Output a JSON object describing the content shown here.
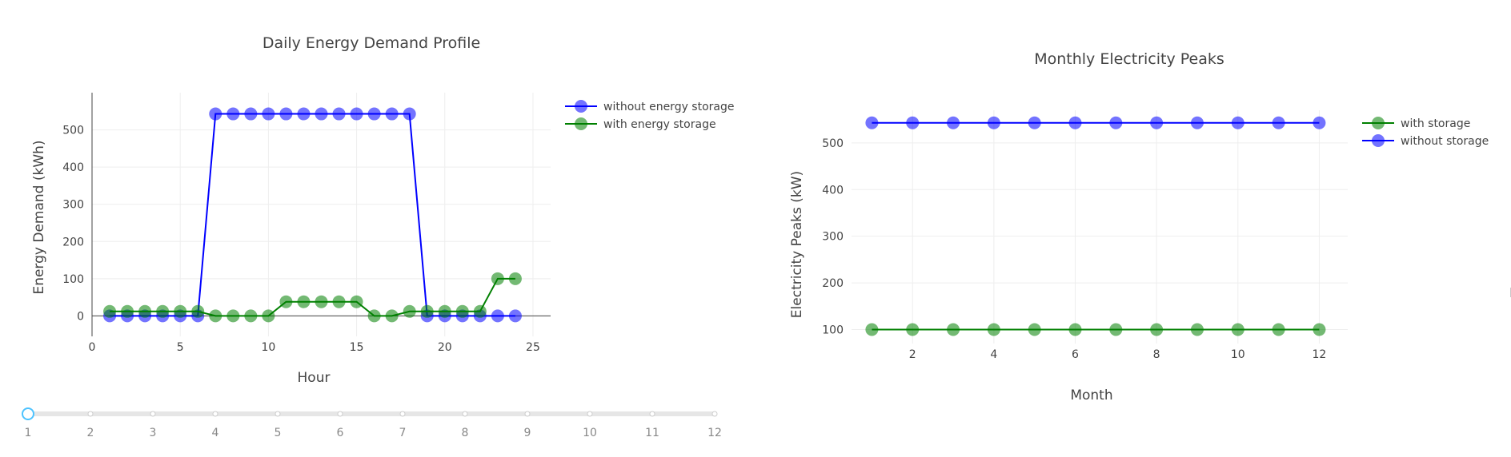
{
  "chart_data": [
    {
      "type": "line",
      "title": "Daily Energy Demand Profile",
      "xlabel": "Hour",
      "ylabel": "Energy Demand (kWh)",
      "xlim": [
        0,
        26
      ],
      "ylim": [
        -55,
        600
      ],
      "x_ticks": [
        0,
        5,
        10,
        15,
        20,
        25
      ],
      "y_ticks": [
        0,
        100,
        200,
        300,
        400,
        500
      ],
      "grid": true,
      "legend_position": "top-right",
      "series": [
        {
          "name": "without energy storage",
          "color": "#0000ff",
          "x": [
            1,
            2,
            3,
            4,
            5,
            6,
            7,
            8,
            9,
            10,
            11,
            12,
            13,
            14,
            15,
            16,
            17,
            18,
            19,
            20,
            21,
            22,
            23,
            24
          ],
          "values": [
            0,
            0,
            0,
            0,
            0,
            0,
            543,
            543,
            543,
            543,
            543,
            543,
            543,
            543,
            543,
            543,
            543,
            543,
            0,
            0,
            0,
            0,
            0,
            0
          ]
        },
        {
          "name": "with energy storage",
          "color": "#008000",
          "x": [
            1,
            2,
            3,
            4,
            5,
            6,
            7,
            8,
            9,
            10,
            11,
            12,
            13,
            14,
            15,
            16,
            17,
            18,
            19,
            20,
            21,
            22,
            23,
            24
          ],
          "values": [
            12,
            12,
            12,
            12,
            12,
            12,
            0,
            0,
            0,
            0,
            38,
            38,
            38,
            38,
            38,
            0,
            0,
            12,
            12,
            12,
            12,
            12,
            100,
            100
          ]
        }
      ]
    },
    {
      "type": "line",
      "title": "Monthly Electricity Peaks",
      "xlabel": "Month",
      "ylabel": "Electricity Peaks (kW)",
      "xlim": [
        0.5,
        12.7
      ],
      "ylim": [
        70,
        570
      ],
      "x_ticks": [
        2,
        4,
        6,
        8,
        10,
        12
      ],
      "y_ticks": [
        100,
        200,
        300,
        400,
        500
      ],
      "grid": true,
      "legend_position": "top-right",
      "series": [
        {
          "name": "with storage",
          "color": "#008000",
          "x": [
            1,
            2,
            3,
            4,
            5,
            6,
            7,
            8,
            9,
            10,
            11,
            12
          ],
          "values": [
            100,
            100,
            100,
            100,
            100,
            100,
            100,
            100,
            100,
            100,
            100,
            100
          ]
        },
        {
          "name": "without storage",
          "color": "#0000ff",
          "x": [
            1,
            2,
            3,
            4,
            5,
            6,
            7,
            8,
            9,
            10,
            11,
            12
          ],
          "values": [
            543,
            543,
            543,
            543,
            543,
            543,
            543,
            543,
            543,
            543,
            543,
            543
          ]
        }
      ]
    }
  ],
  "slider": {
    "steps": [
      "1",
      "2",
      "3",
      "4",
      "5",
      "6",
      "7",
      "8",
      "9",
      "10",
      "11",
      "12"
    ],
    "active_index": 0,
    "accent_color": "#4dc3ff"
  }
}
